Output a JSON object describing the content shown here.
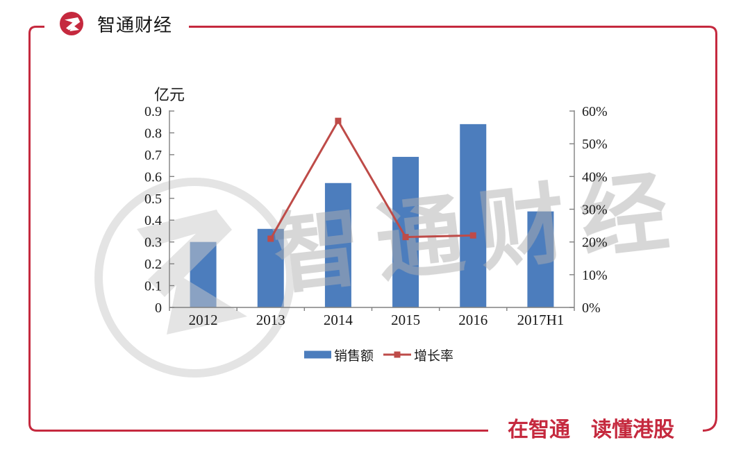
{
  "header": {
    "brand": "智通财经"
  },
  "footer": {
    "slogan": "在智通　读懂港股"
  },
  "watermark": {
    "text": "智通财经"
  },
  "brand_colors": {
    "red": "#C5293E",
    "bar_blue": "#4C7DBD",
    "line_red": "#BE4B48",
    "axis_gray": "#808080",
    "watermark_gray": "#AFAFAF"
  },
  "chart_data": {
    "type": "bar+line",
    "categories": [
      "2012",
      "2013",
      "2014",
      "2015",
      "2016",
      "2017H1"
    ],
    "series": [
      {
        "name": "销售额",
        "type": "bar",
        "axis": "left",
        "values": [
          0.3,
          0.36,
          0.57,
          0.69,
          0.84,
          0.44
        ]
      },
      {
        "name": "增长率",
        "type": "line",
        "axis": "right",
        "values": [
          null,
          21,
          57,
          21.5,
          22,
          null
        ]
      }
    ],
    "left_axis": {
      "title": "亿元",
      "min": 0,
      "max": 0.9,
      "step": 0.1
    },
    "right_axis": {
      "min": 0,
      "max": 60,
      "step": 10,
      "suffix": "%"
    },
    "legend_position": "bottom",
    "grid": false
  }
}
